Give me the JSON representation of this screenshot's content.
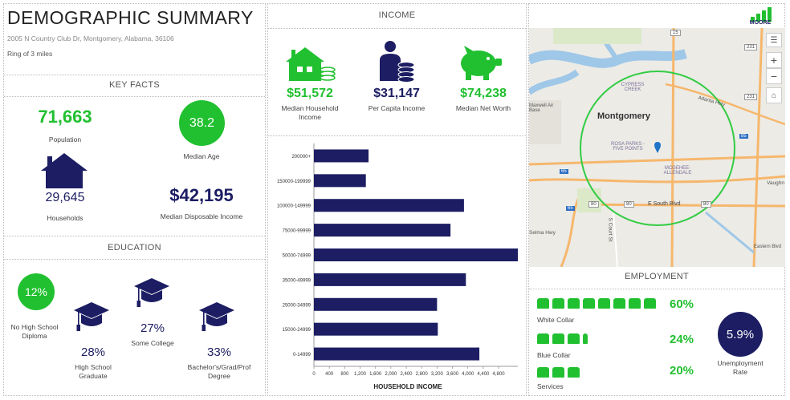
{
  "title": "DEMOGRAPHIC SUMMARY",
  "address": "2005 N Country Club Dr, Montgomery, Alabama, 36106",
  "ring": "Ring of 3 miles",
  "key_facts": {
    "header": "KEY FACTS",
    "population": "71,663",
    "population_label": "Population",
    "median_age": "38.2",
    "median_age_label": "Median Age",
    "households": "29,645",
    "households_label": "Households",
    "median_disposable_income": "$42,195",
    "median_disposable_income_label": "Median Disposable Income"
  },
  "education": {
    "header": "EDUCATION",
    "no_hs_pct": "12%",
    "no_hs_label": "No High School Diploma",
    "hs_pct": "28%",
    "hs_label": "High School Graduate",
    "some_college_pct": "27%",
    "some_college_label": "Some College",
    "bachelors_pct": "33%",
    "bachelors_label": "Bachelor's/Grad/Prof Degree"
  },
  "income": {
    "header": "INCOME",
    "median_household_income": "$51,572",
    "median_household_income_label": "Median Household Income",
    "per_capita_income": "$31,147",
    "per_capita_income_label": "Per Capita Income",
    "median_net_worth": "$74,238",
    "median_net_worth_label": "Median Net Worth"
  },
  "chart_data": {
    "type": "bar",
    "orientation": "horizontal",
    "categories": [
      "200000+",
      "150000-199999",
      "100000-149999",
      "75000-99999",
      "50000-74999",
      "35000-49999",
      "25000-34999",
      "15000-24999",
      "0-14999"
    ],
    "values": [
      1420,
      1350,
      3900,
      3550,
      5300,
      3950,
      3200,
      3220,
      4300
    ],
    "xlabel": "HOUSEHOLD INCOME",
    "xlim": [
      0,
      5300
    ],
    "xticks": [
      "0",
      "400",
      "800",
      "1,200",
      "1,600",
      "2,000",
      "2,400",
      "2,800",
      "3,200",
      "3,600",
      "4,000",
      "4,400",
      "4,800"
    ],
    "bar_color": "#1c1d63"
  },
  "map": {
    "city_label": "Montgomery",
    "labels": [
      "CYPRESS CREEK",
      "ROSA PARKS - FIVE POINTS",
      "MCGEHEE-ALLENDALE",
      "Atlanta Hwy",
      "E South Blvd",
      "S Court St",
      "Selma Hwy",
      "Maxwell Air Base",
      "Vaughn",
      "Eastern Blvd"
    ],
    "shields": [
      "15",
      "231",
      "231",
      "85",
      "65",
      "80",
      "80",
      "80",
      "65"
    ]
  },
  "logo": {
    "text": "MOORE"
  },
  "employment": {
    "header": "EMPLOYMENT",
    "white_collar_pct": "60%",
    "white_collar_label": "White Collar",
    "blue_collar_pct": "24%",
    "blue_collar_label": "Blue Collar",
    "services_pct": "20%",
    "services_label": "Services",
    "unemployment_rate": "5.9%",
    "unemployment_label": "Unemployment Rate"
  },
  "colors": {
    "green": "#21c030",
    "navy": "#1c1d63",
    "map_ring": "#33cc44"
  }
}
